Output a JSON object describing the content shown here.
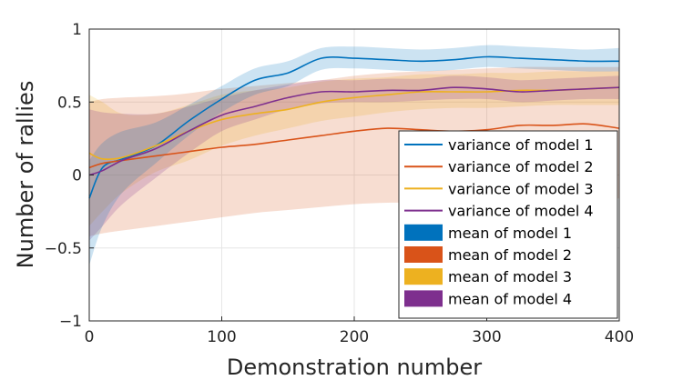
{
  "chart_data": {
    "type": "line",
    "title": "",
    "xlabel": "Demonstration number",
    "ylabel": "Number of rallies",
    "xlim": [
      0,
      400
    ],
    "ylim": [
      -1,
      1
    ],
    "xticks": [
      "0",
      "100",
      "200",
      "300",
      "400"
    ],
    "yticks": [
      "−1",
      "−0.5",
      "0",
      "0.5",
      "1"
    ],
    "grid": true,
    "legend_position": "lower-right",
    "x": [
      0,
      10,
      25,
      50,
      75,
      100,
      125,
      150,
      175,
      200,
      225,
      250,
      275,
      300,
      325,
      350,
      375,
      400
    ],
    "series": [
      {
        "name": "variance of model 1",
        "color": "#0072BD",
        "values": [
          -0.16,
          0.05,
          0.11,
          0.2,
          0.37,
          0.52,
          0.65,
          0.7,
          0.8,
          0.8,
          0.79,
          0.78,
          0.79,
          0.81,
          0.8,
          0.79,
          0.78,
          0.78
        ],
        "band_low": [
          -0.62,
          -0.35,
          -0.12,
          0.08,
          0.27,
          0.43,
          0.55,
          0.61,
          0.72,
          0.73,
          0.72,
          0.71,
          0.72,
          0.74,
          0.73,
          0.72,
          0.71,
          0.71
        ],
        "band_high": [
          0.1,
          0.22,
          0.3,
          0.36,
          0.48,
          0.61,
          0.73,
          0.78,
          0.87,
          0.88,
          0.87,
          0.86,
          0.87,
          0.89,
          0.88,
          0.87,
          0.86,
          0.87
        ]
      },
      {
        "name": "variance of model 2",
        "color": "#D95319",
        "values": [
          0.05,
          0.08,
          0.1,
          0.13,
          0.16,
          0.19,
          0.21,
          0.24,
          0.27,
          0.3,
          0.32,
          0.31,
          0.3,
          0.31,
          0.34,
          0.34,
          0.35,
          0.32
        ],
        "band_low": [
          -0.42,
          -0.4,
          -0.38,
          -0.35,
          -0.32,
          -0.29,
          -0.26,
          -0.24,
          -0.22,
          -0.2,
          -0.19,
          -0.19,
          -0.18,
          -0.18,
          -0.17,
          -0.17,
          -0.16,
          -0.16
        ],
        "band_high": [
          0.5,
          0.52,
          0.53,
          0.54,
          0.56,
          0.59,
          0.61,
          0.63,
          0.65,
          0.68,
          0.7,
          0.71,
          0.72,
          0.73,
          0.74,
          0.74,
          0.74,
          0.74
        ]
      },
      {
        "name": "variance of model 3",
        "color": "#EDB120",
        "values": [
          0.15,
          0.11,
          0.12,
          0.2,
          0.3,
          0.38,
          0.42,
          0.45,
          0.5,
          0.53,
          0.55,
          0.57,
          0.57,
          0.57,
          0.58,
          0.58,
          0.59,
          0.6
        ],
        "band_low": [
          -0.35,
          -0.25,
          -0.12,
          0.02,
          0.1,
          0.2,
          0.27,
          0.32,
          0.37,
          0.4,
          0.43,
          0.45,
          0.46,
          0.46,
          0.47,
          0.48,
          0.48,
          0.48
        ],
        "band_high": [
          0.55,
          0.5,
          0.42,
          0.42,
          0.48,
          0.55,
          0.58,
          0.6,
          0.64,
          0.66,
          0.67,
          0.69,
          0.69,
          0.7,
          0.7,
          0.71,
          0.71,
          0.71
        ]
      },
      {
        "name": "variance of model 4",
        "color": "#7E2F8E",
        "values": [
          0.0,
          0.03,
          0.1,
          0.18,
          0.3,
          0.41,
          0.47,
          0.53,
          0.57,
          0.57,
          0.58,
          0.58,
          0.6,
          0.59,
          0.57,
          0.58,
          0.59,
          0.6
        ],
        "band_low": [
          -0.45,
          -0.35,
          -0.2,
          -0.02,
          0.15,
          0.3,
          0.38,
          0.45,
          0.49,
          0.5,
          0.5,
          0.51,
          0.52,
          0.52,
          0.5,
          0.51,
          0.52,
          0.52
        ],
        "band_high": [
          0.45,
          0.43,
          0.42,
          0.42,
          0.47,
          0.53,
          0.58,
          0.62,
          0.65,
          0.65,
          0.66,
          0.66,
          0.68,
          0.67,
          0.65,
          0.66,
          0.67,
          0.68
        ]
      }
    ],
    "legend": [
      {
        "label": "variance of model 1",
        "kind": "line",
        "color": "#0072BD"
      },
      {
        "label": "variance of model 2",
        "kind": "line",
        "color": "#D95319"
      },
      {
        "label": "variance of model 3",
        "kind": "line",
        "color": "#EDB120"
      },
      {
        "label": "variance of model 4",
        "kind": "line",
        "color": "#7E2F8E"
      },
      {
        "label": "mean of model 1",
        "kind": "patch",
        "color": "#0072BD"
      },
      {
        "label": "mean of model 2",
        "kind": "patch",
        "color": "#D95319"
      },
      {
        "label": "mean of model 3",
        "kind": "patch",
        "color": "#EDB120"
      },
      {
        "label": "mean of model 4",
        "kind": "patch",
        "color": "#7E2F8E"
      }
    ]
  }
}
